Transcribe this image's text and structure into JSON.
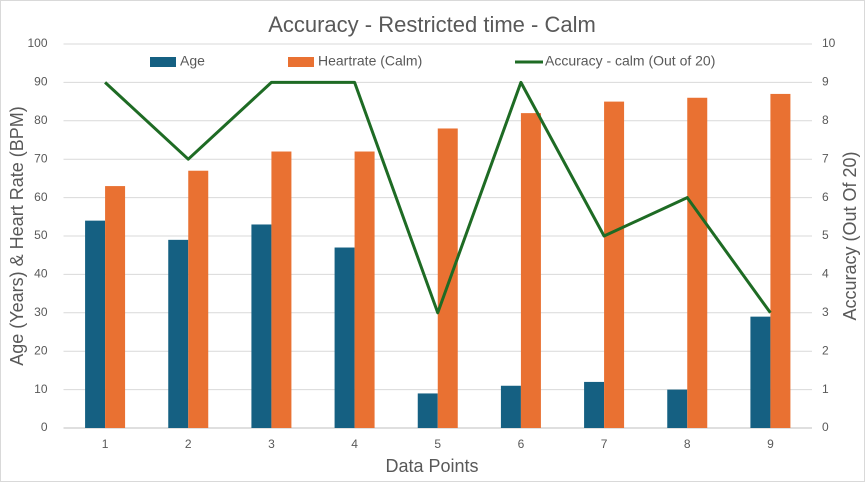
{
  "chart_data": {
    "type": "bar",
    "title": "Accuracy - Restricted time - Calm",
    "x_label": "Data Points",
    "y_label": "Age (Years) & Heart Rate (BPM)",
    "y2_label": "Accuracy (Out Of 20)",
    "categories": [
      "1",
      "2",
      "3",
      "4",
      "5",
      "6",
      "7",
      "8",
      "9"
    ],
    "series": [
      {
        "name": "Age",
        "color": "#156082",
        "type": "bar",
        "values": [
          54,
          49,
          53,
          47,
          9,
          11,
          12,
          10,
          29
        ]
      },
      {
        "name": "Heartrate (Calm)",
        "color": "#e97132",
        "type": "bar",
        "values": [
          63,
          67,
          72,
          72,
          78,
          82,
          85,
          86,
          87
        ]
      },
      {
        "name": "Accuracy - calm (Out of 20)",
        "color": "#1e6b24",
        "type": "line",
        "axis": "y2",
        "values": [
          9,
          7,
          9,
          9,
          3,
          9,
          5,
          6,
          3
        ]
      }
    ],
    "ylim": [
      0,
      100
    ],
    "yticks": [
      0,
      10,
      20,
      30,
      40,
      50,
      60,
      70,
      80,
      90,
      100
    ],
    "y2lim": [
      0,
      10
    ],
    "y2ticks": [
      0,
      1,
      2,
      3,
      4,
      5,
      6,
      7,
      8,
      9,
      10
    ],
    "grid": true,
    "legend": "top"
  }
}
